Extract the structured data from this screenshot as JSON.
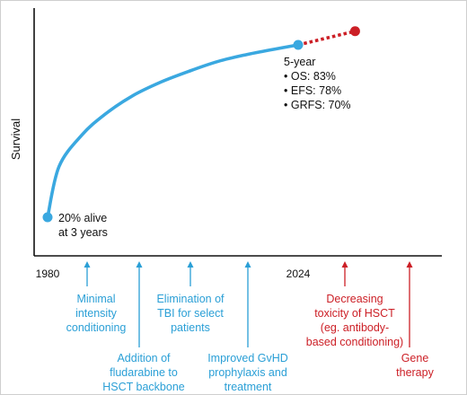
{
  "chart_data": {
    "type": "line",
    "ylabel": "Survival",
    "x_ticks": [
      "1980",
      "2024"
    ],
    "series": [
      {
        "style": "solid",
        "color": "#3aa8e0",
        "x": [
          1980,
          1982,
          1986,
          1990,
          1995,
          2000,
          2005,
          2010,
          2015,
          2020,
          2024
        ],
        "y": [
          20,
          38.5,
          50,
          57.5,
          64.5,
          69.5,
          73.5,
          77,
          79.5,
          81.5,
          83
        ]
      },
      {
        "style": "dotted",
        "color": "#cc1f26",
        "x": [
          2024,
          2034
        ],
        "y": [
          83,
          88
        ]
      }
    ],
    "annotations": {
      "start": [
        "20% alive",
        "at 3 years"
      ],
      "end_title": "5-year",
      "end_items": [
        "OS: 83%",
        "EFS: 78%",
        "GRFS: 70%"
      ]
    },
    "milestones": [
      {
        "lines": [
          "Minimal",
          "intensity",
          "conditioning"
        ],
        "color": "#2a9fd6"
      },
      {
        "lines": [
          "Addition of",
          "fludarabine to",
          "HSCT backbone"
        ],
        "color": "#2a9fd6"
      },
      {
        "lines": [
          "Elimination of",
          "TBI for select",
          "patients"
        ],
        "color": "#2a9fd6"
      },
      {
        "lines": [
          "Improved GvHD",
          "prophylaxis and",
          "treatment"
        ],
        "color": "#2a9fd6"
      },
      {
        "lines": [
          "Decreasing",
          "toxicity of HSCT",
          "(eg. antibody-",
          "based conditioning)"
        ],
        "color": "#cc1f26"
      },
      {
        "lines": [
          "Gene",
          "therapy"
        ],
        "color": "#cc1f26"
      }
    ]
  }
}
